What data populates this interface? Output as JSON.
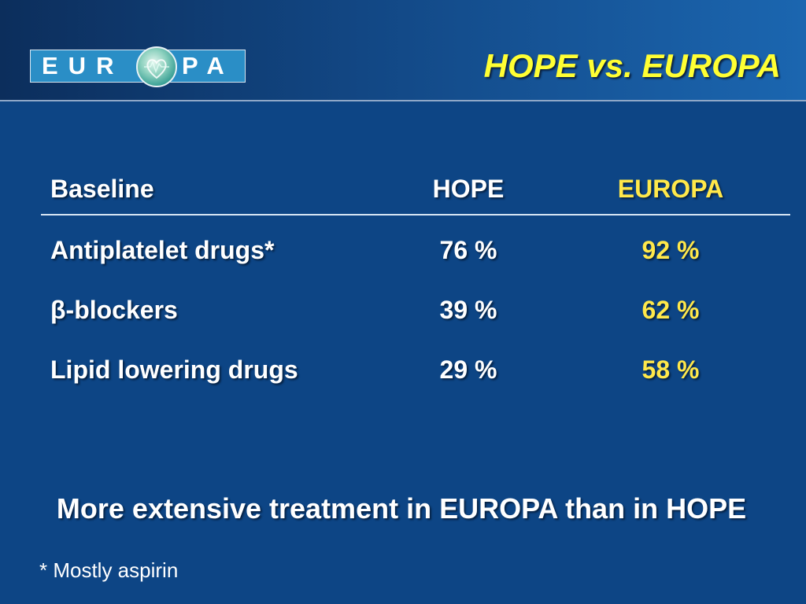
{
  "slide": {
    "logo": {
      "left_text": "EUR",
      "right_text": "PA",
      "alt": "EUROPA"
    },
    "title": "HOPE vs. EUROPA",
    "table": {
      "headers": [
        "Baseline",
        "HOPE",
        "EUROPA"
      ],
      "rows": [
        {
          "label": "Antiplatelet drugs*",
          "hope": "76 %",
          "europa": "92 %"
        },
        {
          "label": "β-blockers",
          "hope": "39 %",
          "europa": "62 %"
        },
        {
          "label": "Lipid lowering drugs",
          "hope": "29 %",
          "europa": "58 %"
        }
      ]
    },
    "conclusion": "More extensive treatment in EUROPA than in HOPE",
    "footnote": "* Mostly aspirin"
  },
  "colors": {
    "background": "#0d4585",
    "title": "#ffff33",
    "europa_highlight": "#ffe84a",
    "text": "#ffffff",
    "logo_bar": "#2a8ec6"
  }
}
